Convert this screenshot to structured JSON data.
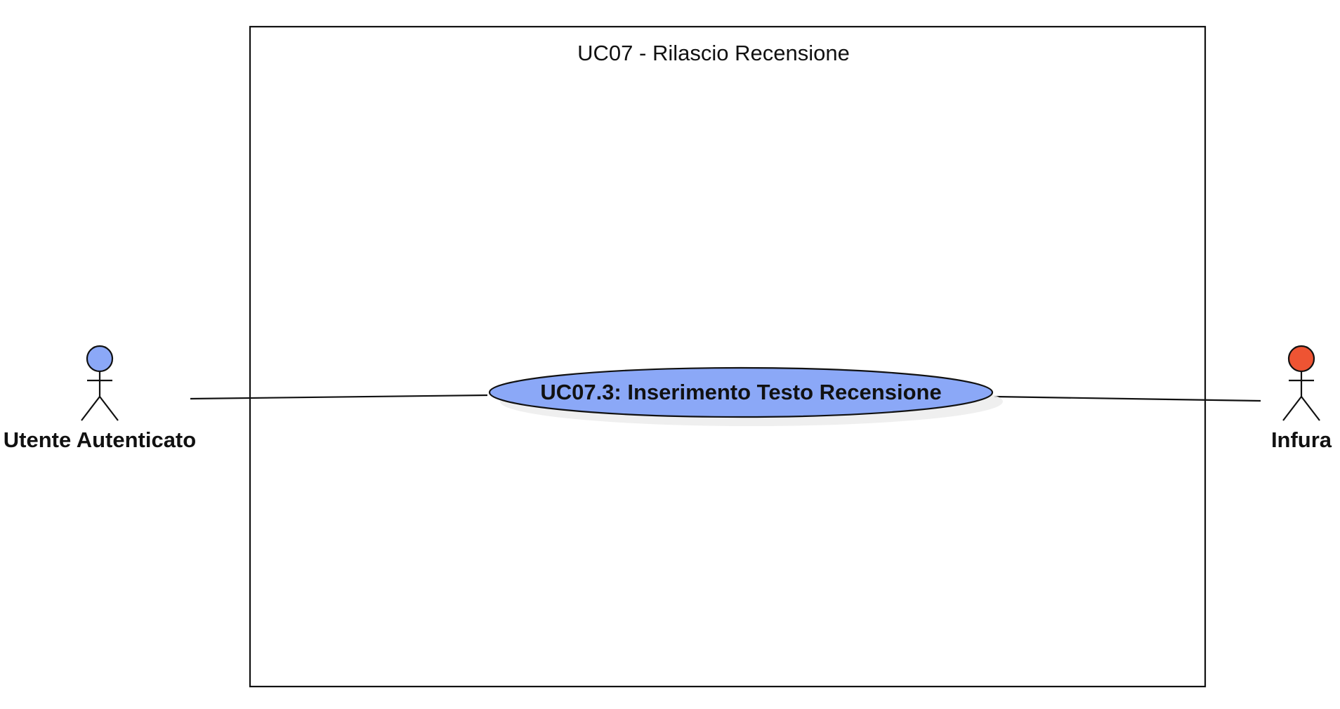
{
  "diagram": {
    "system": {
      "title": "UC07 - Rilascio Recensione"
    },
    "use_case": {
      "label": "UC07.3: Inserimento Testo Recensione",
      "fill_color": "#8ba8f7"
    },
    "actors": {
      "left": {
        "label": "Utente Autenticato",
        "head_color": "#8ba8f7"
      },
      "right": {
        "label": "Infura",
        "head_color": "#ee5433"
      }
    }
  }
}
